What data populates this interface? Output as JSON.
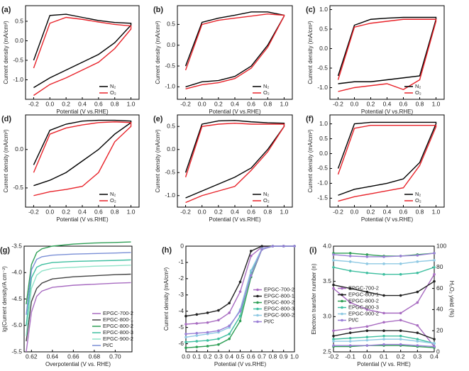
{
  "chart_data": [
    {
      "type": "line",
      "label": "(a)",
      "xlabel": "Potential (V vs.RHE)",
      "ylabel": "Current density (mA/cm²)",
      "x": [
        -0.2,
        0,
        0.2,
        0.4,
        0.6,
        0.8,
        1.0,
        1.0,
        0.8,
        0.6,
        0.4,
        0.2,
        0,
        -0.2
      ],
      "xlim": [
        -0.3,
        1.1
      ],
      "xticks": [
        -0.2,
        {
          "value": 0,
          "label": "0.0"
        },
        0.2,
        0.4,
        0.6,
        0.8,
        {
          "value": 1,
          "label": "1.0"
        }
      ],
      "ylim": [
        -1.5,
        0.9
      ],
      "yticks": [
        {
          "value": -1,
          "label": "-1.0"
        },
        -0.5,
        {
          "value": 0,
          "label": "0.0"
        },
        0.5
      ],
      "legend": "lower right",
      "series": [
        {
          "name": "N₂",
          "color": "#000000",
          "values": [
            -0.5,
            0.65,
            0.68,
            0.6,
            0.52,
            0.47,
            0.45,
            0.4,
            -0.05,
            -0.35,
            -0.55,
            -0.75,
            -0.95,
            -1.2
          ]
        },
        {
          "name": "O₂",
          "color": "#e8232a",
          "values": [
            -0.7,
            0.45,
            0.6,
            0.55,
            0.48,
            0.42,
            0.38,
            0.3,
            -0.2,
            -0.55,
            -0.75,
            -0.95,
            -1.12,
            -1.4
          ]
        }
      ]
    },
    {
      "type": "line",
      "label": "(b)",
      "xlabel": "Potential (V vs.RHE)",
      "ylabel": "Current density (mA/cm²)",
      "x": [
        -0.2,
        0,
        0.2,
        0.4,
        0.6,
        0.8,
        1.0,
        1.0,
        0.8,
        0.6,
        0.4,
        0.2,
        0,
        -0.2
      ],
      "xlim": [
        -0.3,
        1.1
      ],
      "xticks": [
        -0.2,
        {
          "value": 0,
          "label": "0.0"
        },
        0.2,
        0.4,
        0.6,
        0.8,
        {
          "value": 1,
          "label": "1.0"
        }
      ],
      "ylim": [
        -1.3,
        0.95
      ],
      "yticks": [
        {
          "value": -1,
          "label": "-1.0"
        },
        -0.5,
        {
          "value": 0,
          "label": "0.0"
        },
        0.5
      ],
      "legend": "lower right",
      "series": [
        {
          "name": "N₂",
          "color": "#000000",
          "values": [
            -0.5,
            0.55,
            0.65,
            0.72,
            0.8,
            0.8,
            0.72,
            0.7,
            0.0,
            -0.5,
            -0.75,
            -0.85,
            -0.88,
            -1.0
          ]
        },
        {
          "name": "O₂",
          "color": "#e8232a",
          "values": [
            -0.6,
            0.5,
            0.6,
            0.65,
            0.7,
            0.75,
            0.72,
            0.7,
            -0.05,
            -0.55,
            -0.8,
            -0.9,
            -0.95,
            -1.05
          ]
        }
      ]
    },
    {
      "type": "line",
      "label": "(c)",
      "xlabel": "Potential (V vs.RHE)",
      "ylabel": "Current density (mA/cm²)",
      "x": [
        -0.2,
        0,
        0.2,
        0.4,
        0.6,
        0.8,
        1.0,
        1.0,
        0.8,
        0.6,
        0.4,
        0.2,
        0,
        -0.2
      ],
      "xlim": [
        -0.3,
        1.1
      ],
      "xticks": [
        -0.2,
        {
          "value": 0,
          "label": "0.0"
        },
        0.2,
        0.4,
        0.6,
        0.8,
        {
          "value": 1,
          "label": "1.0"
        }
      ],
      "ylim": [
        -1.3,
        1.1
      ],
      "yticks": [
        {
          "value": -1,
          "label": "-1.0"
        },
        -0.5,
        {
          "value": 0,
          "label": "0.0"
        },
        0.5,
        {
          "value": 1,
          "label": "1.0"
        }
      ],
      "legend": "lower right",
      "series": [
        {
          "name": "N₂",
          "color": "#000000",
          "values": [
            -0.7,
            0.6,
            0.75,
            0.78,
            0.8,
            0.8,
            0.8,
            0.75,
            -0.7,
            -0.75,
            -0.8,
            -0.85,
            -0.85,
            -0.9
          ]
        },
        {
          "name": "O₂",
          "color": "#e8232a",
          "values": [
            -0.8,
            0.55,
            0.65,
            0.7,
            0.75,
            0.75,
            0.75,
            0.7,
            -0.8,
            -1.05,
            -0.9,
            -0.95,
            -1.0,
            -1.1
          ]
        }
      ]
    },
    {
      "type": "line",
      "label": "(d)",
      "xlabel": "Potential (V vs.RHE)",
      "ylabel": "Current density (mA/cm²)",
      "x": [
        -0.2,
        0,
        0.2,
        0.4,
        0.6,
        0.8,
        1.0,
        1.0,
        0.8,
        0.6,
        0.4,
        0.2,
        0,
        -0.2
      ],
      "xlim": [
        -0.3,
        1.1
      ],
      "xticks": [
        -0.2,
        {
          "value": 0,
          "label": "0.0"
        },
        0.2,
        0.4,
        0.6,
        0.8,
        {
          "value": 1,
          "label": "1.0"
        }
      ],
      "ylim": [
        -0.75,
        0.45
      ],
      "yticks": [
        -0.5,
        {
          "value": 0,
          "label": "0.0"
        }
      ],
      "legend": "lower right",
      "series": [
        {
          "name": "N₂",
          "color": "#000000",
          "values": [
            -0.2,
            0.25,
            0.33,
            0.37,
            0.38,
            0.38,
            0.37,
            0.35,
            0.2,
            0.0,
            -0.15,
            -0.3,
            -0.4,
            -0.47
          ]
        },
        {
          "name": "O₂",
          "color": "#e8232a",
          "values": [
            -0.3,
            0.2,
            0.28,
            0.32,
            0.35,
            0.36,
            0.35,
            0.3,
            0.1,
            -0.3,
            -0.48,
            -0.52,
            -0.55,
            -0.6
          ]
        }
      ]
    },
    {
      "type": "line",
      "label": "(e)",
      "xlabel": "Potential (V vs.RHE)",
      "ylabel": "Current density (mA/cm²)",
      "x": [
        -0.2,
        0,
        0.2,
        0.4,
        0.6,
        0.8,
        1.0,
        1.0,
        0.8,
        0.6,
        0.4,
        0.2,
        0,
        -0.2
      ],
      "xlim": [
        -0.3,
        1.1
      ],
      "xticks": [
        -0.2,
        {
          "value": 0,
          "label": "0.0"
        },
        0.2,
        0.4,
        0.6,
        0.8,
        {
          "value": 1,
          "label": "1.0"
        }
      ],
      "ylim": [
        -1.25,
        0.75
      ],
      "yticks": [
        {
          "value": -1,
          "label": "-1.0"
        },
        -0.5,
        {
          "value": 0,
          "label": "0.0"
        },
        0.5
      ],
      "legend": "lower right",
      "series": [
        {
          "name": "N₂",
          "color": "#000000",
          "values": [
            -0.5,
            0.55,
            0.62,
            0.63,
            0.6,
            0.58,
            0.57,
            0.5,
            0.0,
            -0.4,
            -0.6,
            -0.75,
            -0.9,
            -1.05
          ]
        },
        {
          "name": "O₂",
          "color": "#e8232a",
          "values": [
            -0.6,
            0.5,
            0.55,
            0.57,
            0.55,
            0.55,
            0.55,
            0.5,
            -0.05,
            -0.45,
            -0.8,
            -0.9,
            -1.0,
            -1.15
          ]
        }
      ]
    },
    {
      "type": "line",
      "label": "(f)",
      "xlabel": "Potential (V vs.RHE)",
      "ylabel": "Current density (mA/cm²)",
      "x": [
        -0.2,
        0,
        0.2,
        0.4,
        0.6,
        0.8,
        1.0,
        1.0,
        0.8,
        0.6,
        0.4,
        0.2,
        0,
        -0.2
      ],
      "xlim": [
        -0.3,
        1.1
      ],
      "xticks": [
        -0.2,
        {
          "value": 0,
          "label": "0.0"
        },
        0.2,
        0.4,
        0.6,
        0.8,
        {
          "value": 1,
          "label": "1.0"
        }
      ],
      "ylim": [
        -1.8,
        1.3
      ],
      "yticks": [
        -1.5,
        {
          "value": -1,
          "label": "-1.0"
        },
        -0.5,
        {
          "value": 0,
          "label": "0.0"
        },
        0.5,
        {
          "value": 1,
          "label": "1.0"
        }
      ],
      "legend": "lower right",
      "series": [
        {
          "name": "N₂",
          "color": "#000000",
          "values": [
            -0.5,
            1.0,
            1.05,
            1.05,
            1.05,
            1.05,
            1.05,
            1.0,
            -0.3,
            -0.85,
            -1.0,
            -1.1,
            -1.2,
            -1.4
          ]
        },
        {
          "name": "O₂",
          "color": "#e8232a",
          "values": [
            -0.7,
            0.85,
            0.95,
            0.95,
            0.95,
            0.95,
            0.95,
            0.9,
            -0.4,
            -1.15,
            -1.25,
            -1.35,
            -1.45,
            -1.6
          ]
        }
      ]
    },
    {
      "type": "line",
      "label": "(g)",
      "xlabel": "Overpotential (V vs. RHE)",
      "ylabel": "lg(Current density/A cm⁻²)",
      "x": [
        0.615,
        0.62,
        0.625,
        0.63,
        0.64,
        0.66,
        0.68,
        0.7,
        0.715
      ],
      "xlim": [
        0.613,
        0.716
      ],
      "xticks": [
        0.62,
        0.64,
        0.66,
        0.68,
        {
          "value": 0.7,
          "label": "0.70"
        }
      ],
      "ylim": [
        -5.5,
        -3.5
      ],
      "yticks": [
        -3.5,
        {
          "value": -4,
          "label": "-4.0"
        },
        -4.5,
        {
          "value": -5,
          "label": "-5.0"
        },
        -5.5
      ],
      "legend": "lower right",
      "series": [
        {
          "name": "EPGC-700-2",
          "color": "#a86cc1",
          "values": [
            -5.5,
            -4.75,
            -4.45,
            -4.35,
            -4.28,
            -4.24,
            -4.22,
            -4.2,
            -4.19
          ]
        },
        {
          "name": "EPGC-800-1",
          "color": "#444444",
          "values": [
            -5.3,
            -4.55,
            -4.3,
            -4.2,
            -4.12,
            -4.08,
            -4.06,
            -4.04,
            -4.03
          ]
        },
        {
          "name": "EPGC-800-2",
          "color": "#2e9e55",
          "values": [
            -4.6,
            -3.85,
            -3.62,
            -3.55,
            -3.5,
            -3.46,
            -3.44,
            -3.43,
            -3.42
          ]
        },
        {
          "name": "EPGC-800-3",
          "color": "#3fbfa0",
          "values": [
            -5.0,
            -4.1,
            -3.9,
            -3.85,
            -3.81,
            -3.79,
            -3.78,
            -3.77,
            -3.76
          ]
        },
        {
          "name": "EPGC-900-2",
          "color": "#8fe3c8",
          "values": [
            -5.2,
            -4.3,
            -4.05,
            -3.97,
            -3.92,
            -3.9,
            -3.88,
            -3.87,
            -3.86
          ]
        },
        {
          "name": "Pt/C",
          "color": "#7a8fd6",
          "values": [
            -4.8,
            -3.95,
            -3.75,
            -3.7,
            -3.67,
            -3.65,
            -3.64,
            -3.63,
            -3.62
          ]
        }
      ]
    },
    {
      "type": "line",
      "label": "(h)",
      "markers": true,
      "xlabel": "Potential (V vs.RHE)",
      "ylabel": "Current density (mA/cm²)",
      "x": [
        0,
        0.1,
        0.2,
        0.3,
        0.4,
        0.5,
        0.6,
        0.7,
        0.8,
        0.9,
        1.0
      ],
      "xlim": [
        0,
        1
      ],
      "xticks": [
        {
          "value": 0,
          "label": "0.0"
        },
        0.1,
        0.2,
        0.3,
        0.4,
        0.5,
        0.6,
        0.7,
        0.8,
        0.9,
        {
          "value": 1,
          "label": "1.0"
        }
      ],
      "ylim": [
        -6.5,
        0
      ],
      "yticks": [
        -6,
        -5,
        -4,
        -3,
        -2,
        -1,
        0
      ],
      "legend": "center right",
      "series": [
        {
          "name": "EPGC-700-2",
          "color": "#a86cc1",
          "values": [
            -4.8,
            -4.75,
            -4.7,
            -4.55,
            -4.1,
            -2.8,
            -0.6,
            -0.05,
            0,
            0,
            0
          ]
        },
        {
          "name": "EPGC-800-1",
          "color": "#222222",
          "values": [
            -4.3,
            -4.2,
            -4.1,
            -3.95,
            -3.5,
            -2.2,
            -0.3,
            0,
            0,
            0,
            0
          ]
        },
        {
          "name": "EPGC-800-2",
          "color": "#2e9e55",
          "values": [
            -6.25,
            -6.2,
            -6.15,
            -6.05,
            -5.7,
            -4.6,
            -1.9,
            -0.2,
            0,
            0,
            0
          ]
        },
        {
          "name": "EPGC-800-3",
          "color": "#3fbfa0",
          "values": [
            -5.9,
            -5.85,
            -5.8,
            -5.7,
            -5.4,
            -4.3,
            -1.6,
            -0.2,
            0,
            0,
            0
          ]
        },
        {
          "name": "EPGC-900-2",
          "color": "#8fc9e3",
          "values": [
            -5.6,
            -5.5,
            -5.4,
            -5.3,
            -5.0,
            -3.9,
            -1.5,
            -0.15,
            0,
            0,
            0
          ]
        },
        {
          "name": "Pt/C",
          "color": "#9a7fd6",
          "values": [
            -5.4,
            -5.35,
            -5.3,
            -5.2,
            -4.9,
            -4.0,
            -1.8,
            -0.2,
            0,
            0,
            0
          ]
        }
      ]
    },
    {
      "type": "line",
      "label": "(i)",
      "markers": true,
      "xlabel": "Potential (V vs. RHE)",
      "ylabel": "Electron transfer number (n)",
      "y2label": "H₂O₂ yield (%)",
      "x": [
        -0.2,
        -0.1,
        0,
        0.1,
        0.2,
        0.3,
        0.4
      ],
      "xlim": [
        -0.2,
        0.4
      ],
      "xticks": [
        -0.2,
        -0.1,
        {
          "value": 0,
          "label": "0.0"
        },
        0.1,
        0.2,
        0.3,
        0.4
      ],
      "ylim": [
        2.5,
        4.0
      ],
      "yticks": [
        2.5,
        {
          "value": 3,
          "label": "3.0"
        },
        3.5,
        {
          "value": 4,
          "label": "4.0"
        }
      ],
      "y2lim": [
        0,
        100
      ],
      "y2ticks": [
        0,
        20,
        40,
        60,
        80,
        100
      ],
      "legend": "center left",
      "series": [
        {
          "name": "EPGC-700-2",
          "color": "#a86cc1",
          "values": [
            3.4,
            3.2,
            3.1,
            3.05,
            3.05,
            3.2,
            3.6
          ],
          "values_y2": [
            20,
            22,
            24,
            28,
            30,
            25,
            5
          ]
        },
        {
          "name": "EPGC-800-1",
          "color": "#222222",
          "values": [
            3.45,
            3.4,
            3.35,
            3.3,
            3.3,
            3.35,
            3.5
          ],
          "values_y2": [
            15,
            18,
            20,
            20,
            20,
            18,
            12
          ]
        },
        {
          "name": "EPGC-800-2",
          "color": "#2e9e55",
          "values": [
            3.9,
            3.9,
            3.88,
            3.86,
            3.86,
            3.88,
            3.9
          ],
          "values_y2": [
            5,
            5,
            6,
            6,
            6,
            5,
            4
          ]
        },
        {
          "name": "EPGC-800-3",
          "color": "#3fbfa0",
          "values": [
            3.7,
            3.65,
            3.62,
            3.6,
            3.6,
            3.62,
            3.7
          ],
          "values_y2": [
            12,
            13,
            14,
            15,
            15,
            12,
            8
          ]
        },
        {
          "name": "EPGC-900-2",
          "color": "#8fc9e3",
          "values": [
            3.8,
            3.78,
            3.75,
            3.75,
            3.75,
            3.78,
            3.8
          ],
          "values_y2": [
            10,
            10,
            11,
            12,
            12,
            10,
            8
          ]
        },
        {
          "name": "Pt/C",
          "color": "#9a7fd6",
          "values": [
            3.88,
            3.86,
            3.85,
            3.85,
            3.86,
            3.87,
            3.9
          ],
          "values_y2": [
            6,
            6,
            6,
            7,
            7,
            6,
            5
          ]
        }
      ]
    }
  ]
}
